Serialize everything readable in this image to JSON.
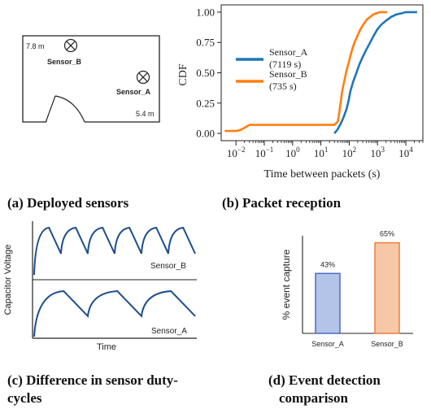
{
  "captions": {
    "a": "(a) Deployed sensors",
    "b": "(b) Packet reception",
    "c_line1": "(c) Difference in sensor duty-",
    "c_line2": "cycles",
    "d_line1": "(d)  Event  detection",
    "d_line2": "comparison"
  },
  "floorplan": {
    "height_label": "7.8 m",
    "width_label": "5.4 m",
    "sensor_b_label": "Sensor_B",
    "sensor_a_label": "Sensor_A",
    "sensor_icon": "crossed-circle-icon",
    "door_icon": "door-arc-icon"
  },
  "chart_data": [
    {
      "id": "packet-cdf",
      "type": "line",
      "xscale": "log",
      "xlabel": "Time between packets (s)",
      "ylabel": "CDF",
      "xlim": [
        0.003,
        40000
      ],
      "ylim": [
        0,
        1
      ],
      "xticks": [
        {
          "value": 0.01,
          "label": "10^-2"
        },
        {
          "value": 0.1,
          "label": "10^-1"
        },
        {
          "value": 1,
          "label": "10^0"
        },
        {
          "value": 10,
          "label": "10^1"
        },
        {
          "value": 100,
          "label": "10^2"
        },
        {
          "value": 1000,
          "label": "10^3"
        },
        {
          "value": 10000,
          "label": "10^4"
        }
      ],
      "yticks": [
        "0.00",
        "0.25",
        "0.50",
        "0.75",
        "1.00"
      ],
      "yticks_values": [
        0,
        0.25,
        0.5,
        0.75,
        1.0
      ],
      "legend": {
        "placement": "center-left"
      },
      "series": [
        {
          "name": "Sensor_A",
          "legend_line1": "Sensor_A",
          "legend_line2": "(7119 s)",
          "color": "#1f77b4",
          "x": [
            30,
            38,
            45,
            55,
            65,
            80,
            95,
            110,
            140,
            180,
            230,
            300,
            400,
            550,
            750,
            1000,
            1400,
            2000,
            3000,
            4500,
            7000,
            10000,
            15000,
            25000
          ],
          "y": [
            0.0,
            0.03,
            0.06,
            0.1,
            0.14,
            0.2,
            0.27,
            0.35,
            0.43,
            0.5,
            0.57,
            0.63,
            0.69,
            0.75,
            0.81,
            0.86,
            0.9,
            0.93,
            0.96,
            0.98,
            0.99,
            1.0,
            1.0,
            1.0
          ]
        },
        {
          "name": "Sensor_B",
          "legend_line1": "Sensor_B",
          "legend_line2": "(735 s)",
          "color": "#ff7f0e",
          "x": [
            0.004,
            0.01,
            0.015,
            0.025,
            0.03,
            0.1,
            1,
            10,
            30,
            40,
            45,
            50,
            55,
            60,
            70,
            80,
            95,
            110,
            130,
            160,
            200,
            250,
            320,
            420,
            550,
            700,
            900,
            1200,
            1600,
            2200
          ],
          "y": [
            0.02,
            0.02,
            0.03,
            0.06,
            0.07,
            0.07,
            0.07,
            0.07,
            0.07,
            0.1,
            0.18,
            0.26,
            0.33,
            0.38,
            0.45,
            0.52,
            0.58,
            0.64,
            0.7,
            0.76,
            0.81,
            0.86,
            0.9,
            0.94,
            0.96,
            0.98,
            0.99,
            1.0,
            1.0,
            1.0
          ]
        }
      ]
    },
    {
      "id": "capacitor-voltage",
      "type": "line",
      "xlabel": "Time",
      "ylabel": "Capacitor Voltage",
      "series": [
        {
          "name": "Sensor_B",
          "color": "#1f4e8c",
          "cycles": 6
        },
        {
          "name": "Sensor_A",
          "color": "#1f4e8c",
          "cycles": 3
        }
      ]
    },
    {
      "id": "event-capture",
      "type": "bar",
      "ylabel": "% event capture",
      "ylim": [
        0,
        70
      ],
      "categories": [
        "Sensor_A",
        "Sensor_B"
      ],
      "values": [
        43,
        65
      ],
      "value_labels": [
        "43%",
        "65%"
      ],
      "fills": [
        "#b4c4e8",
        "#f6c8a6"
      ],
      "strokes": [
        "#4a6bc4",
        "#ef7f3a"
      ]
    }
  ]
}
